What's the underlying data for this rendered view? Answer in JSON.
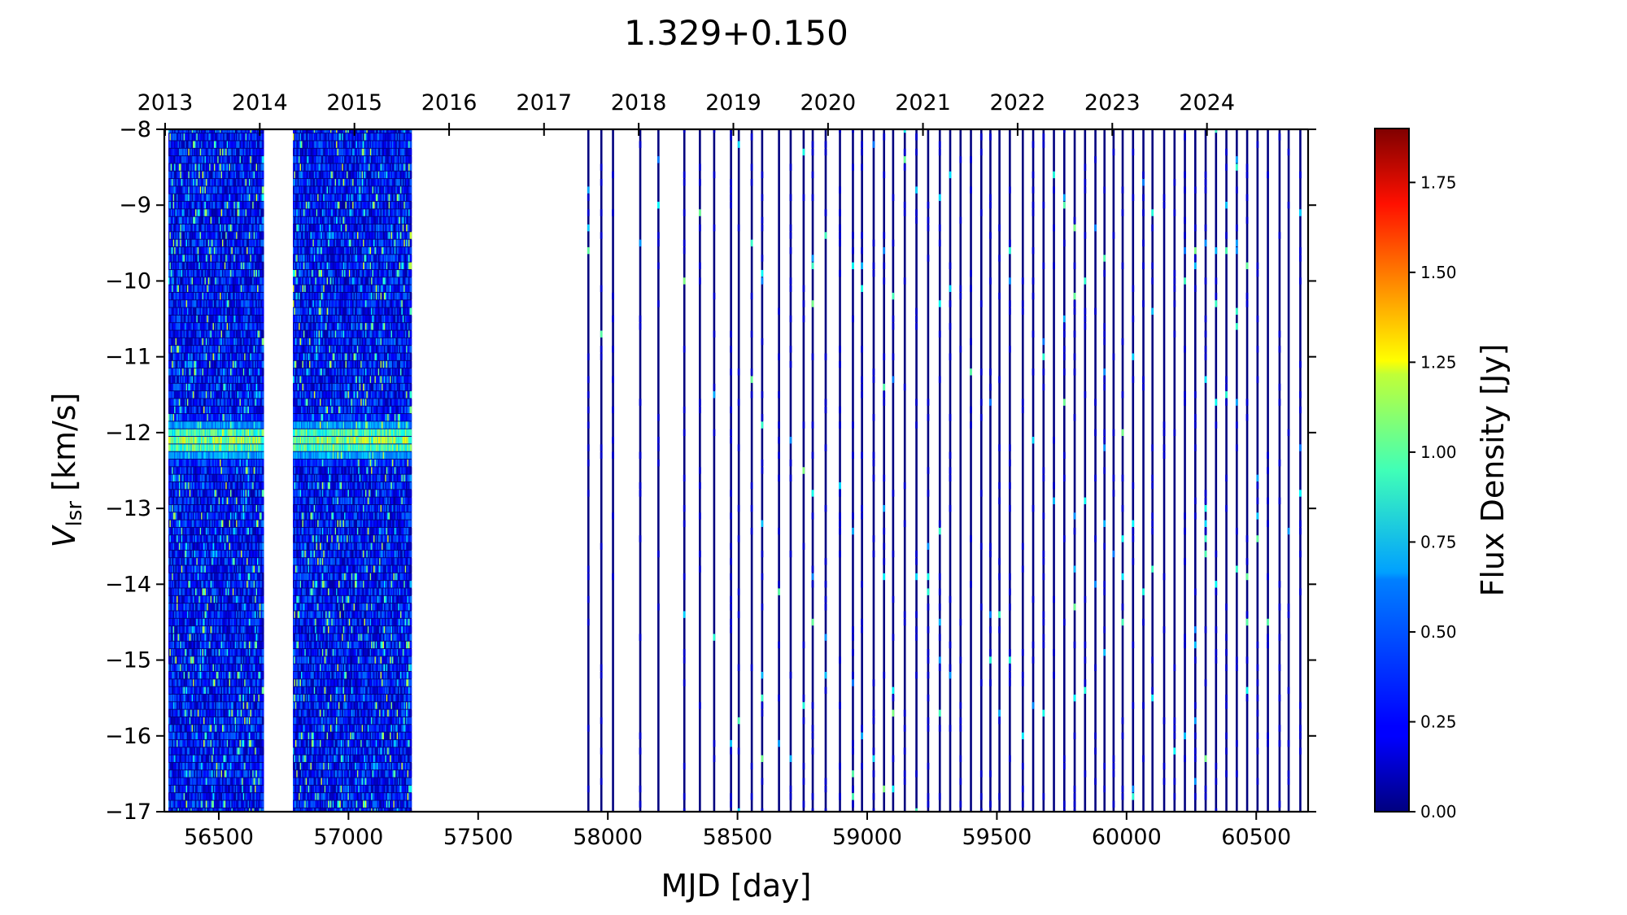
{
  "chart_data": {
    "type": "heatmap",
    "title": "1.329+0.150",
    "xlabel": "MJD [day]",
    "ylabel_main": "V",
    "ylabel_sub": "lsr",
    "ylabel_unit": " [km/s]",
    "colorbar_label": "Flux Density [Jy]",
    "xlim": [
      56290,
      60700
    ],
    "ylim": [
      -17,
      -8
    ],
    "x_ticks": [
      56500,
      57000,
      57500,
      58000,
      58500,
      59000,
      59500,
      60000,
      60500
    ],
    "x_tick_labels": [
      "56500",
      "57000",
      "57500",
      "58000",
      "58500",
      "59000",
      "59500",
      "60000",
      "60500"
    ],
    "y_ticks": [
      -8,
      -9,
      -10,
      -11,
      -12,
      -13,
      -14,
      -15,
      -16,
      -17
    ],
    "y_tick_labels": [
      "−8",
      "−9",
      "−10",
      "−11",
      "−12",
      "−13",
      "−14",
      "−15",
      "−16",
      "−17"
    ],
    "top_axis_years": [
      {
        "label": "2013",
        "mjd": 56293
      },
      {
        "label": "2014",
        "mjd": 56658
      },
      {
        "label": "2015",
        "mjd": 57023
      },
      {
        "label": "2016",
        "mjd": 57388
      },
      {
        "label": "2017",
        "mjd": 57754
      },
      {
        "label": "2018",
        "mjd": 58119
      },
      {
        "label": "2019",
        "mjd": 58484
      },
      {
        "label": "2020",
        "mjd": 58849
      },
      {
        "label": "2021",
        "mjd": 59215
      },
      {
        "label": "2022",
        "mjd": 59580
      },
      {
        "label": "2023",
        "mjd": 59945
      },
      {
        "label": "2024",
        "mjd": 60310
      }
    ],
    "colorbar_range": [
      0,
      1.9
    ],
    "colorbar_ticks": [
      0.0,
      0.25,
      0.5,
      0.75,
      1.0,
      1.25,
      1.5,
      1.75
    ],
    "colorbar_tick_labels": [
      "0.00",
      "0.25",
      "0.50",
      "0.75",
      "1.00",
      "1.25",
      "1.50",
      "1.75"
    ],
    "colormap": "jet",
    "dense_observation_periods": [
      {
        "start": 56310,
        "end": 56670
      },
      {
        "start": 56790,
        "end": 57240
      }
    ],
    "sparse_observation_mjds": [
      57925,
      57975,
      58020,
      58125,
      58195,
      58295,
      58355,
      58410,
      58475,
      58505,
      58555,
      58595,
      58660,
      58705,
      58755,
      58790,
      58840,
      58895,
      58945,
      58980,
      59025,
      59065,
      59100,
      59145,
      59190,
      59235,
      59280,
      59320,
      59360,
      59400,
      59440,
      59475,
      59510,
      59550,
      59600,
      59640,
      59680,
      59720,
      59760,
      59800,
      59840,
      59880,
      59915,
      59950,
      59985,
      60025,
      60065,
      60100,
      60145,
      60185,
      60225,
      60265,
      60305,
      60345,
      60385,
      60425,
      60465,
      60505,
      60545,
      60590,
      60625,
      60670
    ],
    "features": [
      {
        "description": "persistent emission band",
        "velocity": -12.1,
        "peak_flux": 1.2,
        "mjd_range": [
          56310,
          57240
        ]
      }
    ]
  }
}
